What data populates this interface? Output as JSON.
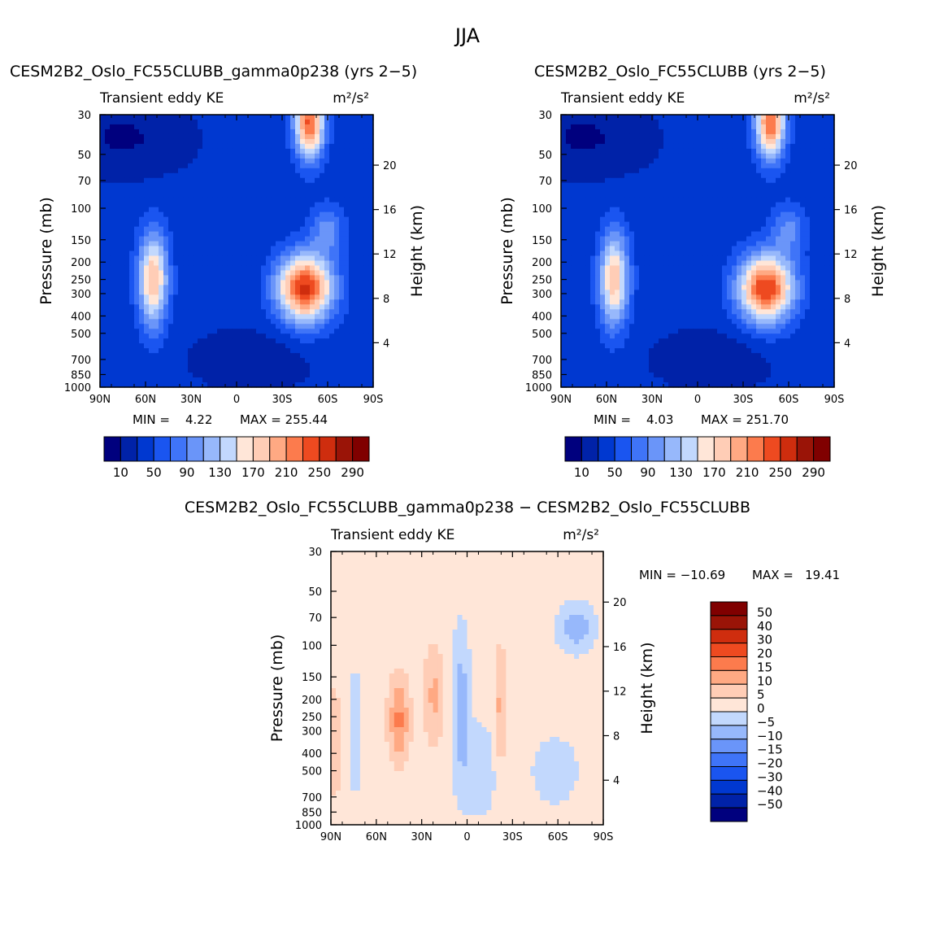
{
  "figure_title": "JJA",
  "chart_data": [
    {
      "type": "heatmap",
      "title": "CESM2B2_Oslo_FC55CLUBB_gamma0p238 (yrs 2−5)",
      "subtitle_left": "Transient eddy KE",
      "units": "m²/s²",
      "ylabel": "Pressure (mb)",
      "ylabel_right": "Height (km)",
      "xlabel": "",
      "x_ticks": [
        "90N",
        "60N",
        "30N",
        "0",
        "30S",
        "60S",
        "90S"
      ],
      "y_ticks": [
        "30",
        "50",
        "70",
        "100",
        "150",
        "200",
        "250",
        "300",
        "400",
        "500",
        "700",
        "850",
        "1000"
      ],
      "y_ticks_right": [
        "20",
        "16",
        "12",
        "8",
        "4"
      ],
      "min_label": "MIN =    4.22",
      "max_label": "MAX = 255.44",
      "colorbar_labels": [
        "10",
        "50",
        "90",
        "130",
        "170",
        "210",
        "250",
        "290"
      ],
      "colors": [
        "#00007e",
        "#0022a8",
        "#0038d0",
        "#1a55f0",
        "#3f74f8",
        "#6a95f9",
        "#97b8fb",
        "#c2d8fd",
        "#ffe6d8",
        "#ffcdb6",
        "#ffa983",
        "#fc7b4d",
        "#ee4a20",
        "#cf2d0e",
        "#9a1407",
        "#800000"
      ],
      "levels": [
        10,
        30,
        50,
        70,
        90,
        110,
        130,
        150,
        170,
        190,
        210,
        230,
        250,
        270,
        290
      ],
      "background": 35,
      "features": [
        {
          "lat": 55,
          "p": 250,
          "amp": 155,
          "slat": 7,
          "sz": 2.3
        },
        {
          "lat": -45,
          "p": 280,
          "amp": 220,
          "slat": 13,
          "sz": 3.2
        },
        {
          "lat": -48,
          "p": 33,
          "amp": 200,
          "slat": 7,
          "sz": 3.0
        },
        {
          "lat": -60,
          "p": 130,
          "amp": 60,
          "slat": 8,
          "sz": 4.5
        },
        {
          "lat": -10,
          "p": 700,
          "amp": -22,
          "slat": 25,
          "sz": 4.0
        },
        {
          "lat": 75,
          "p": 40,
          "amp": -28,
          "slat": 28,
          "sz": 3.0
        }
      ]
    },
    {
      "type": "heatmap",
      "title": "CESM2B2_Oslo_FC55CLUBB (yrs 2−5)",
      "subtitle_left": "Transient eddy KE",
      "units": "m²/s²",
      "ylabel": "Pressure (mb)",
      "ylabel_right": "Height (km)",
      "xlabel": "",
      "x_ticks": [
        "90N",
        "60N",
        "30N",
        "0",
        "30S",
        "60S",
        "90S"
      ],
      "y_ticks": [
        "30",
        "50",
        "70",
        "100",
        "150",
        "200",
        "250",
        "300",
        "400",
        "500",
        "700",
        "850",
        "1000"
      ],
      "y_ticks_right": [
        "20",
        "16",
        "12",
        "8",
        "4"
      ],
      "min_label": "MIN =    4.03",
      "max_label": "MAX = 251.70",
      "colorbar_labels": [
        "10",
        "50",
        "90",
        "130",
        "170",
        "210",
        "250",
        "290"
      ],
      "colors": [
        "#00007e",
        "#0022a8",
        "#0038d0",
        "#1a55f0",
        "#3f74f8",
        "#6a95f9",
        "#97b8fb",
        "#c2d8fd",
        "#ffe6d8",
        "#ffcdb6",
        "#ffa983",
        "#fc7b4d",
        "#ee4a20",
        "#cf2d0e",
        "#9a1407",
        "#800000"
      ],
      "levels": [
        10,
        30,
        50,
        70,
        90,
        110,
        130,
        150,
        170,
        190,
        210,
        230,
        250,
        270,
        290
      ],
      "background": 35,
      "features": [
        {
          "lat": 55,
          "p": 250,
          "amp": 150,
          "slat": 7,
          "sz": 2.3
        },
        {
          "lat": -45,
          "p": 280,
          "amp": 215,
          "slat": 13,
          "sz": 3.2
        },
        {
          "lat": -48,
          "p": 33,
          "amp": 195,
          "slat": 7,
          "sz": 3.0
        },
        {
          "lat": -60,
          "p": 130,
          "amp": 58,
          "slat": 8,
          "sz": 4.5
        },
        {
          "lat": -10,
          "p": 700,
          "amp": -22,
          "slat": 25,
          "sz": 4.0
        },
        {
          "lat": 75,
          "p": 40,
          "amp": -28,
          "slat": 28,
          "sz": 3.0
        }
      ]
    },
    {
      "type": "heatmap",
      "title": "CESM2B2_Oslo_FC55CLUBB_gamma0p238 − CESM2B2_Oslo_FC55CLUBB",
      "subtitle_left": "Transient eddy KE",
      "units": "m²/s²",
      "ylabel": "Pressure (mb)",
      "ylabel_right": "Height (km)",
      "xlabel": "",
      "x_ticks": [
        "90N",
        "60N",
        "30N",
        "0",
        "30S",
        "60S",
        "90S"
      ],
      "y_ticks": [
        "30",
        "50",
        "70",
        "100",
        "150",
        "200",
        "250",
        "300",
        "400",
        "500",
        "700",
        "850",
        "1000"
      ],
      "y_ticks_right": [
        "20",
        "16",
        "12",
        "8",
        "4"
      ],
      "min_label": "MIN = −10.69",
      "max_label": "MAX =   19.41",
      "colorbar_labels": [
        "50",
        "40",
        "30",
        "20",
        "15",
        "10",
        "5",
        "0",
        "−5",
        "−10",
        "−15",
        "−20",
        "−30",
        "−40",
        "−50"
      ],
      "colors": [
        "#00007e",
        "#0022a8",
        "#0038d0",
        "#1a55f0",
        "#3f74f8",
        "#6a95f9",
        "#97b8fb",
        "#c2d8fd",
        "#ffe6d8",
        "#ffcdb6",
        "#ffa983",
        "#fc7b4d",
        "#ee4a20",
        "#cf2d0e",
        "#9a1407",
        "#800000"
      ],
      "levels": [
        -50,
        -40,
        -30,
        -20,
        -15,
        -10,
        -5,
        0,
        5,
        10,
        15,
        20,
        30,
        40,
        50
      ],
      "background": 2,
      "features": [
        {
          "lat": 45,
          "p": 260,
          "amp": 14,
          "slat": 5,
          "sz": 2.6
        },
        {
          "lat": 22,
          "p": 190,
          "amp": 9,
          "slat": 5,
          "sz": 2.2
        },
        {
          "lat": -22,
          "p": 230,
          "amp": 9,
          "slat": 3,
          "sz": 1.7
        },
        {
          "lat": 88,
          "p": 350,
          "amp": 8,
          "slat": 4,
          "sz": 2.0
        },
        {
          "lat": 4,
          "p": 210,
          "amp": -10,
          "slat": 4,
          "sz": 1.6
        },
        {
          "lat": 74,
          "p": 300,
          "amp": -7,
          "slat": 3,
          "sz": 2.0
        },
        {
          "lat": -72,
          "p": 80,
          "amp": -11,
          "slat": 8,
          "sz": 5.0
        },
        {
          "lat": -8,
          "p": 500,
          "amp": -6,
          "slat": 9,
          "sz": 2.5
        },
        {
          "lat": -58,
          "p": 500,
          "amp": -6,
          "slat": 10,
          "sz": 3.5
        }
      ]
    }
  ]
}
